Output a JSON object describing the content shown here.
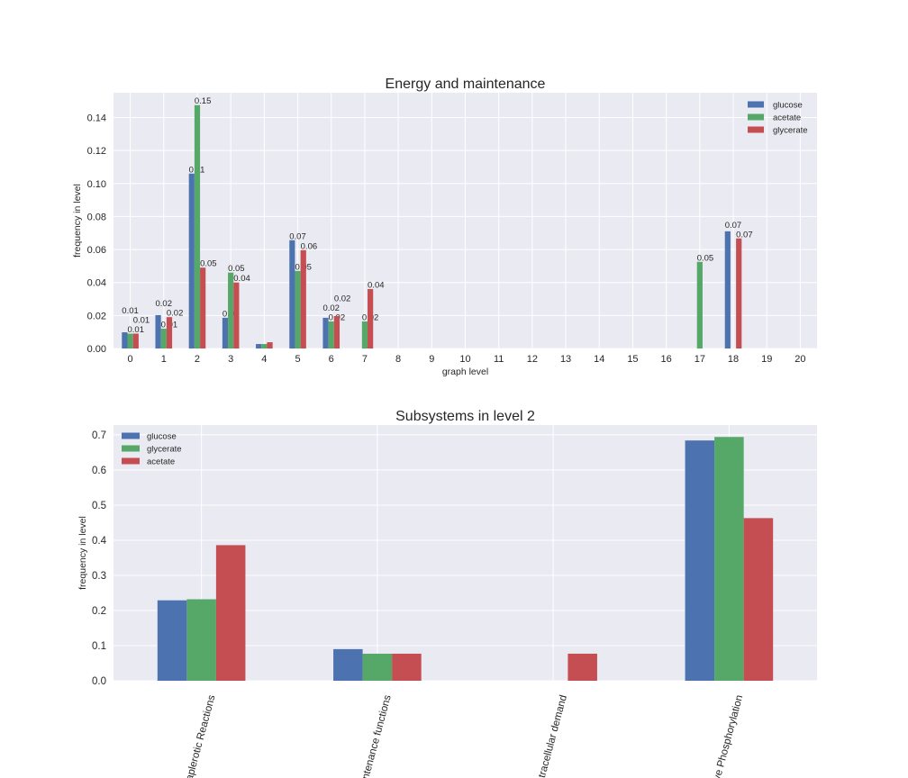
{
  "chart_data": [
    {
      "type": "bar",
      "title": "Energy and maintenance",
      "xlabel": "graph level",
      "ylabel": "frequency in level",
      "categories": [
        "0",
        "1",
        "2",
        "3",
        "4",
        "5",
        "6",
        "7",
        "8",
        "9",
        "10",
        "11",
        "12",
        "13",
        "14",
        "15",
        "16",
        "17",
        "18",
        "19",
        "20"
      ],
      "ylim": [
        0,
        0.155
      ],
      "yticks": [
        "0.00",
        "0.02",
        "0.04",
        "0.06",
        "0.08",
        "0.10",
        "0.12",
        "0.14"
      ],
      "grid": true,
      "legend_position": "top-right",
      "series": [
        {
          "name": "glucose",
          "color": "#4C72B0",
          "values": [
            0.0098,
            0.0202,
            0.106,
            0.0186,
            0.0027,
            0.0656,
            0.0186,
            0,
            0,
            0,
            0,
            0,
            0,
            0,
            0,
            0,
            0,
            0,
            0.071,
            0,
            0
          ],
          "labels": [
            "0.01",
            "0.02",
            "0.11",
            "0.02",
            null,
            "0.07",
            "0.02",
            null,
            null,
            null,
            null,
            null,
            null,
            null,
            null,
            null,
            null,
            null,
            "0.07",
            null,
            null
          ]
        },
        {
          "name": "acetate",
          "color": "#55A868",
          "values": [
            0.009,
            0.012,
            0.1475,
            0.046,
            0.0027,
            0.047,
            0.0164,
            0.0164,
            0,
            0,
            0,
            0,
            0,
            0,
            0,
            0,
            0,
            0.0525,
            0,
            0,
            0
          ],
          "labels": [
            "0.01",
            "0.01",
            "0.15",
            "0.05",
            null,
            "0.05",
            "0.02",
            "0.02",
            null,
            null,
            null,
            null,
            null,
            null,
            null,
            null,
            null,
            "0.05",
            null,
            null,
            null
          ]
        },
        {
          "name": "glycerate",
          "color": "#C44E52",
          "values": [
            0.009,
            0.019,
            0.049,
            0.04,
            0.0038,
            0.0596,
            0.0197,
            0.036,
            0,
            0,
            0,
            0,
            0,
            0,
            0,
            0,
            0,
            0,
            0.0667,
            0,
            0
          ],
          "labels": [
            "0.01",
            "0.02",
            "0.05",
            "0.04",
            null,
            "0.06",
            "0.02",
            "0.04",
            null,
            null,
            null,
            null,
            null,
            null,
            null,
            null,
            null,
            null,
            "0.07",
            null,
            null
          ]
        }
      ]
    },
    {
      "type": "bar",
      "title": "Subsystems in level 2",
      "xlabel": "",
      "ylabel": "frequency in level",
      "categories": [
        "Anaplerotic Reactions",
        "Maintenance functions",
        "Intracellular demand",
        "Oxidative Phosphorylation"
      ],
      "ylim": [
        0,
        0.728
      ],
      "yticks": [
        "0.0",
        "0.1",
        "0.2",
        "0.3",
        "0.4",
        "0.5",
        "0.6",
        "0.7"
      ],
      "grid": true,
      "legend_position": "top-left",
      "series": [
        {
          "name": "glucose",
          "color": "#4C72B0",
          "values": [
            0.229,
            0.09,
            0,
            0.684
          ]
        },
        {
          "name": "glycerate",
          "color": "#55A868",
          "values": [
            0.232,
            0.077,
            0,
            0.694
          ]
        },
        {
          "name": "acetate",
          "color": "#C44E52",
          "values": [
            0.386,
            0.077,
            0.077,
            0.463
          ]
        }
      ]
    }
  ]
}
